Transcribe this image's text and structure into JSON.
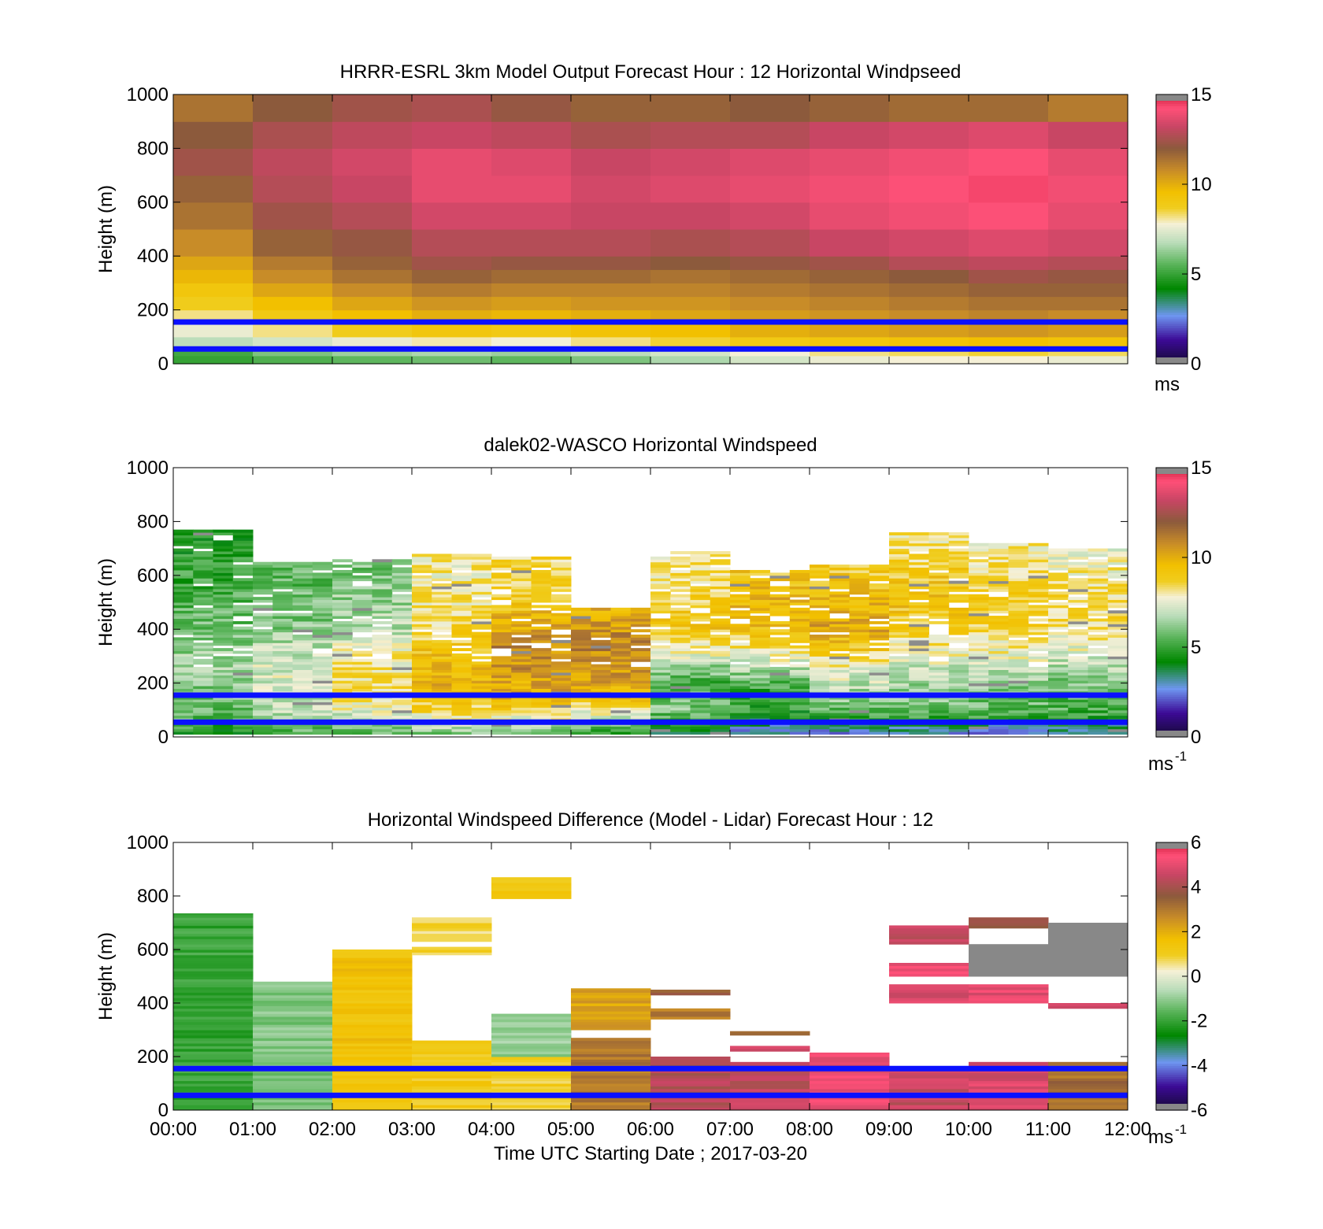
{
  "figure": {
    "xlabel": "Time UTC  Starting Date ; 2017-03-20",
    "x_ticks": [
      "00:00",
      "01:00",
      "02:00",
      "03:00",
      "04:00",
      "05:00",
      "06:00",
      "07:00",
      "08:00",
      "09:00",
      "10:00",
      "11:00",
      "12:00"
    ]
  },
  "chart_data": [
    {
      "type": "heatmap",
      "title": "HRRR-ESRL 3km Model Output   Forecast Hour : 12 Horizontal Windpseed",
      "ylabel": "Height (m)",
      "xlim": [
        0,
        12
      ],
      "ylim": [
        0,
        1000
      ],
      "y_ticks": [
        "0",
        "200",
        "400",
        "600",
        "800",
        "1000"
      ],
      "colorbar": {
        "ticks": [
          "0",
          "5",
          "10",
          "15"
        ],
        "range": [
          0,
          15
        ],
        "unit": "ms",
        "unit_sup": ""
      },
      "reference_lines_m": [
        55,
        155
      ],
      "x_hours": [
        0,
        1,
        2,
        3,
        4,
        5,
        6,
        7,
        8,
        9,
        10,
        11
      ],
      "height_levels_m": [
        0,
        30,
        60,
        100,
        150,
        200,
        250,
        300,
        350,
        400,
        500,
        600,
        700,
        800,
        900,
        1000
      ],
      "values": [
        [
          5.0,
          5.2,
          6.8,
          7.6,
          8.2,
          8.8,
          9.2,
          9.8,
          10.2,
          10.8,
          11.4,
          11.8,
          12.4,
          12.0,
          11.4
        ],
        [
          5.4,
          6.0,
          7.2,
          8.2,
          9.0,
          9.6,
          10.2,
          10.8,
          11.2,
          11.8,
          12.4,
          12.8,
          13.0,
          12.6,
          12.0
        ],
        [
          5.6,
          6.4,
          7.6,
          8.8,
          9.6,
          10.2,
          10.8,
          11.4,
          11.8,
          12.2,
          12.8,
          13.2,
          13.4,
          13.0,
          12.4
        ],
        [
          5.8,
          6.6,
          8.0,
          9.2,
          10.0,
          10.6,
          11.2,
          11.8,
          12.4,
          12.8,
          13.4,
          13.8,
          13.8,
          13.2,
          12.6
        ],
        [
          5.6,
          6.4,
          7.8,
          9.0,
          9.8,
          10.4,
          11.0,
          11.6,
          12.2,
          12.8,
          13.4,
          13.8,
          13.6,
          13.0,
          12.2
        ],
        [
          6.0,
          6.8,
          8.2,
          9.4,
          10.0,
          10.6,
          11.0,
          11.6,
          12.2,
          12.8,
          13.2,
          13.4,
          13.2,
          12.6,
          11.8
        ],
        [
          6.6,
          7.2,
          8.6,
          9.6,
          10.2,
          10.6,
          11.0,
          11.4,
          12.0,
          12.6,
          13.2,
          13.6,
          13.4,
          12.8,
          11.8
        ],
        [
          7.2,
          7.8,
          9.0,
          10.0,
          10.4,
          10.8,
          11.2,
          11.6,
          12.2,
          12.8,
          13.4,
          13.8,
          13.6,
          12.8,
          12.0
        ],
        [
          7.6,
          8.2,
          9.2,
          10.2,
          10.6,
          11.0,
          11.4,
          11.8,
          12.4,
          13.2,
          13.8,
          14.0,
          13.8,
          13.2,
          11.8
        ],
        [
          7.8,
          8.4,
          9.4,
          10.4,
          10.8,
          11.2,
          11.6,
          12.0,
          12.8,
          13.4,
          14.0,
          14.2,
          14.0,
          13.4,
          11.6
        ],
        [
          7.8,
          8.6,
          9.6,
          10.6,
          11.0,
          11.4,
          11.8,
          12.4,
          13.0,
          13.6,
          14.2,
          14.4,
          14.2,
          13.6,
          11.6
        ],
        [
          7.6,
          8.4,
          9.4,
          10.4,
          10.8,
          11.4,
          11.8,
          12.2,
          12.8,
          13.4,
          13.8,
          14.0,
          13.8,
          13.2,
          11.2
        ]
      ]
    },
    {
      "type": "heatmap",
      "title": "dalek02-WASCO  Horizontal Windspeed",
      "ylabel": "Height (m)",
      "xlim": [
        0,
        12
      ],
      "ylim": [
        0,
        1000
      ],
      "y_ticks": [
        "0",
        "200",
        "400",
        "600",
        "800",
        "1000"
      ],
      "colorbar": {
        "ticks": [
          "0",
          "5",
          "10",
          "15"
        ],
        "range": [
          0,
          15
        ],
        "unit": "ms",
        "unit_sup": "-1"
      },
      "reference_lines_m": [
        55,
        155
      ],
      "x_hours": [
        0,
        1,
        2,
        3,
        4,
        5,
        6,
        7,
        8,
        9,
        10,
        11
      ],
      "height_levels_m": [
        0,
        30,
        60,
        100,
        150,
        200,
        250,
        300,
        350,
        400,
        500,
        600,
        700,
        800
      ],
      "max_height_m": [
        770,
        650,
        660,
        680,
        670,
        480,
        690,
        620,
        640,
        760,
        720,
        700
      ],
      "values": [
        [
          4.6,
          5.0,
          5.6,
          5.8,
          6.0,
          6.2,
          6.4,
          6.4,
          6.2,
          5.8,
          5.4,
          5.0,
          4.6
        ],
        [
          5.2,
          5.8,
          6.4,
          6.8,
          7.0,
          7.2,
          7.2,
          7.0,
          6.6,
          6.2,
          5.8,
          5.6,
          5.6
        ],
        [
          5.4,
          6.2,
          6.8,
          7.6,
          8.2,
          8.4,
          8.2,
          7.8,
          7.2,
          6.8,
          6.4,
          6.0,
          6.0
        ],
        [
          5.6,
          6.8,
          7.8,
          8.6,
          9.6,
          9.8,
          9.6,
          9.4,
          9.0,
          8.6,
          8.2,
          8.0,
          8.0
        ],
        [
          5.2,
          6.6,
          7.6,
          8.8,
          10.0,
          10.2,
          10.6,
          10.8,
          11.0,
          10.2,
          9.0,
          8.6,
          8.4
        ],
        [
          4.4,
          5.6,
          6.8,
          8.0,
          9.6,
          10.2,
          10.6,
          10.8,
          11.0,
          10.6,
          9.4,
          9.4,
          9.4
        ],
        [
          3.8,
          4.4,
          5.2,
          6.0,
          5.6,
          5.4,
          6.2,
          7.4,
          8.4,
          9.2,
          8.8,
          8.2,
          8.2
        ],
        [
          2.4,
          3.0,
          4.2,
          5.0,
          4.6,
          5.6,
          6.8,
          7.8,
          8.6,
          9.4,
          9.8,
          9.2,
          8.8
        ],
        [
          2.2,
          3.2,
          4.6,
          5.8,
          6.4,
          7.0,
          7.8,
          8.6,
          9.4,
          10.2,
          9.6,
          9.0,
          8.6
        ],
        [
          2.6,
          3.4,
          4.8,
          5.8,
          6.2,
          6.6,
          7.0,
          7.6,
          8.2,
          8.8,
          9.4,
          9.0,
          8.2
        ],
        [
          2.4,
          3.2,
          4.8,
          5.6,
          6.0,
          6.4,
          7.0,
          7.6,
          8.2,
          8.8,
          9.0,
          8.4,
          8.0
        ],
        [
          3.0,
          3.6,
          4.6,
          5.4,
          5.6,
          6.0,
          6.6,
          7.2,
          7.8,
          8.4,
          8.6,
          8.0,
          7.6
        ]
      ]
    },
    {
      "type": "heatmap",
      "title": "Horizontal Windspeed Difference (Model - Lidar) Forecast Hour : 12",
      "ylabel": "Height (m)",
      "xlim": [
        0,
        12
      ],
      "ylim": [
        0,
        1000
      ],
      "y_ticks": [
        "0",
        "200",
        "400",
        "600",
        "800",
        "1000"
      ],
      "colorbar": {
        "ticks": [
          "-6",
          "-4",
          "-2",
          "0",
          "2",
          "4",
          "6"
        ],
        "range": [
          -6,
          6
        ],
        "unit": "ms",
        "unit_sup": "-1"
      },
      "reference_lines_m": [
        55,
        155
      ],
      "segments": [
        {
          "hour": 0,
          "from": 0,
          "to": 735,
          "value": -2.0
        },
        {
          "hour": 1,
          "from": 0,
          "to": 480,
          "value": -1.2
        },
        {
          "hour": 2,
          "from": 0,
          "to": 600,
          "value": 1.5
        },
        {
          "hour": 3,
          "from": 0,
          "to": 260,
          "value": 1.2
        },
        {
          "hour": 3,
          "from": 580,
          "to": 610,
          "value": 1.0
        },
        {
          "hour": 3,
          "from": 630,
          "to": 720,
          "value": 0.8
        },
        {
          "hour": 4,
          "from": 0,
          "to": 200,
          "value": 1.0
        },
        {
          "hour": 4,
          "from": 200,
          "to": 360,
          "value": -1.0
        },
        {
          "hour": 4,
          "from": 790,
          "to": 870,
          "value": 1.2
        },
        {
          "hour": 5,
          "from": 0,
          "to": 270,
          "value": 3.0
        },
        {
          "hour": 5,
          "from": 300,
          "to": 455,
          "value": 2.2
        },
        {
          "hour": 6,
          "from": 0,
          "to": 200,
          "value": 4.2
        },
        {
          "hour": 6,
          "from": 340,
          "to": 380,
          "value": 3.0
        },
        {
          "hour": 6,
          "from": 430,
          "to": 450,
          "value": 3.5
        },
        {
          "hour": 7,
          "from": 0,
          "to": 180,
          "value": 4.4
        },
        {
          "hour": 7,
          "from": 220,
          "to": 240,
          "value": 4.5
        },
        {
          "hour": 7,
          "from": 280,
          "to": 295,
          "value": 3.0
        },
        {
          "hour": 8,
          "from": 0,
          "to": 215,
          "value": 5.0
        },
        {
          "hour": 9,
          "from": 0,
          "to": 150,
          "value": 4.5
        },
        {
          "hour": 9,
          "from": 400,
          "to": 470,
          "value": 4.8
        },
        {
          "hour": 9,
          "from": 500,
          "to": 550,
          "value": 5.0
        },
        {
          "hour": 9,
          "from": 620,
          "to": 690,
          "value": 4.6
        },
        {
          "hour": 10,
          "from": 0,
          "to": 180,
          "value": 4.8
        },
        {
          "hour": 10,
          "from": 400,
          "to": 470,
          "value": 5.0
        },
        {
          "hour": 10,
          "from": 500,
          "to": 620,
          "value": 6.0
        },
        {
          "hour": 10,
          "from": 680,
          "to": 720,
          "value": 3.8
        },
        {
          "hour": 11,
          "from": 0,
          "to": 180,
          "value": 3.2
        },
        {
          "hour": 11,
          "from": 380,
          "to": 400,
          "value": 4.5
        },
        {
          "hour": 11,
          "from": 500,
          "to": 700,
          "value": 6.0
        }
      ]
    }
  ]
}
